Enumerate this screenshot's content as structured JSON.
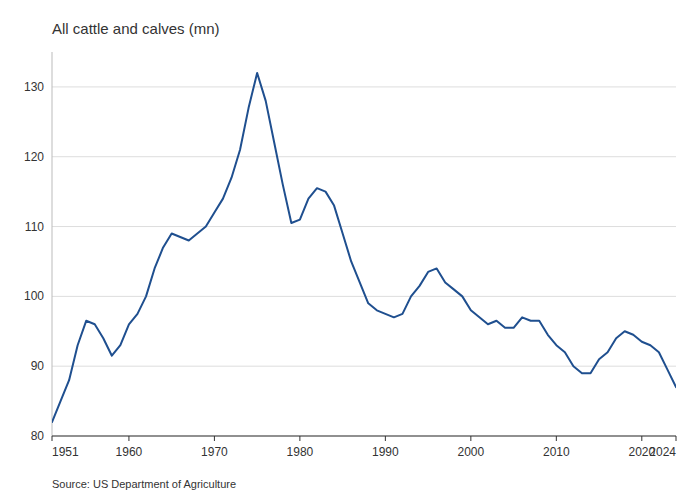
{
  "chart_data": {
    "type": "line",
    "title": "All cattle and calves (mn)",
    "annotations": [
      "Source: US Department of Agriculture"
    ],
    "color": "#1f4f8f",
    "x": [
      1951,
      1952,
      1953,
      1954,
      1955,
      1956,
      1957,
      1958,
      1959,
      1960,
      1961,
      1962,
      1963,
      1964,
      1965,
      1966,
      1967,
      1968,
      1969,
      1970,
      1971,
      1972,
      1973,
      1974,
      1975,
      1976,
      1977,
      1978,
      1979,
      1980,
      1981,
      1982,
      1983,
      1984,
      1985,
      1986,
      1987,
      1988,
      1989,
      1990,
      1991,
      1992,
      1993,
      1994,
      1995,
      1996,
      1997,
      1998,
      1999,
      2000,
      2001,
      2002,
      2003,
      2004,
      2005,
      2006,
      2007,
      2008,
      2009,
      2010,
      2011,
      2012,
      2013,
      2014,
      2015,
      2016,
      2017,
      2018,
      2019,
      2020,
      2021,
      2022,
      2023,
      2024
    ],
    "values": [
      82.0,
      85.0,
      88.0,
      93.0,
      96.5,
      96.0,
      94.0,
      91.5,
      93.0,
      96.0,
      97.5,
      100.0,
      104.0,
      107.0,
      109.0,
      108.5,
      108.0,
      109.0,
      110.0,
      112.0,
      114.0,
      117.0,
      121.0,
      127.0,
      132.0,
      128.0,
      122.0,
      116.0,
      110.5,
      111.0,
      114.0,
      115.5,
      115.0,
      113.0,
      109.0,
      105.0,
      102.0,
      99.0,
      98.0,
      97.5,
      97.0,
      97.5,
      100.0,
      101.5,
      103.5,
      104.0,
      102.0,
      101.0,
      100.0,
      98.0,
      97.0,
      96.0,
      96.5,
      95.5,
      95.5,
      97.0,
      96.5,
      96.5,
      94.5,
      93.0,
      92.0,
      90.0,
      89.0,
      89.0,
      91.0,
      92.0,
      94.0,
      95.0,
      94.5,
      93.5,
      93.0,
      92.0,
      89.5,
      87.0
    ],
    "xlim": [
      1951,
      2024
    ],
    "ylim": [
      80,
      135
    ],
    "xticks": [
      1951,
      1960,
      1970,
      1980,
      1990,
      2000,
      2010,
      2020,
      2024
    ],
    "yticks": [
      80,
      90,
      100,
      110,
      120,
      130
    ],
    "grid": true
  }
}
